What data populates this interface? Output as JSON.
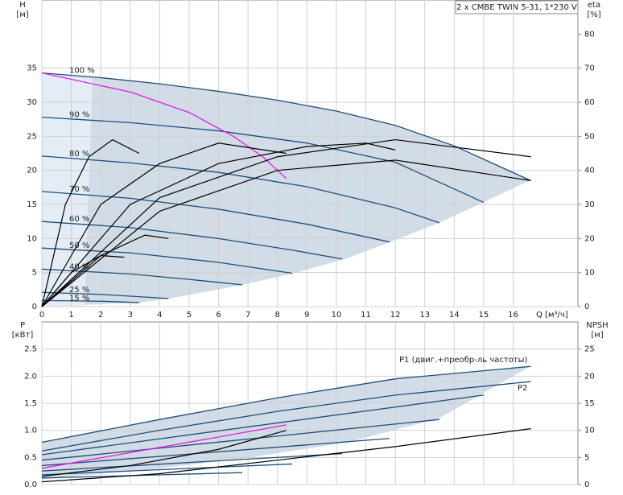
{
  "chart_data": [
    {
      "type": "line",
      "title": "2 x CMBE TWIN 5-31, 1*230 V",
      "xlabel": "Q [м³/ч]",
      "ylabel": "H",
      "yunit": "[м]",
      "y2label": "eta",
      "y2unit": "[%]",
      "xlim": [
        0,
        18.2
      ],
      "xticks": [
        0,
        1,
        2,
        3,
        4,
        5,
        6,
        7,
        8,
        9,
        10,
        11,
        12,
        13,
        14,
        15,
        16
      ],
      "ylim": [
        0,
        45
      ],
      "yticks": [
        0,
        5,
        10,
        15,
        20,
        25,
        30,
        35
      ],
      "y2lim": [
        0,
        90
      ],
      "y2ticks": [
        0,
        10,
        20,
        30,
        40,
        50,
        60,
        70,
        80
      ],
      "grid": true,
      "series": [
        {
          "name": "100 %",
          "color": "#1f4e79",
          "x": [
            0,
            2,
            4,
            6,
            8,
            10,
            12,
            14,
            16.6
          ],
          "y": [
            34.3,
            33.6,
            32.7,
            31.6,
            30.3,
            28.7,
            26.6,
            23.6,
            18.5
          ]
        },
        {
          "name": "90 %",
          "color": "#1f4e79",
          "x": [
            0,
            3,
            6,
            9,
            12,
            15
          ],
          "y": [
            27.8,
            27.0,
            25.8,
            24.0,
            21.2,
            15.3
          ]
        },
        {
          "name": "80 %",
          "color": "#1f4e79",
          "x": [
            0,
            3,
            6,
            9,
            12,
            13.5
          ],
          "y": [
            22.1,
            21.1,
            19.7,
            17.6,
            14.5,
            12.3
          ]
        },
        {
          "name": "70 %",
          "color": "#1f4e79",
          "x": [
            0,
            3,
            6,
            9,
            11.8
          ],
          "y": [
            16.9,
            15.9,
            14.3,
            12.1,
            9.5
          ]
        },
        {
          "name": "60 %",
          "color": "#1f4e79",
          "x": [
            0,
            3,
            6,
            8.5,
            10.2
          ],
          "y": [
            12.5,
            11.6,
            10.0,
            8.3,
            7.0
          ]
        },
        {
          "name": "50 %",
          "color": "#1f4e79",
          "x": [
            0,
            3,
            6,
            8.5
          ],
          "y": [
            8.6,
            7.9,
            6.5,
            4.9
          ]
        },
        {
          "name": "40 %",
          "color": "#1f4e79",
          "x": [
            0,
            3,
            5,
            6.8
          ],
          "y": [
            5.5,
            4.8,
            4.0,
            3.2
          ]
        },
        {
          "name": "25 %",
          "color": "#1f4e79",
          "x": [
            0,
            2,
            4.3
          ],
          "y": [
            2.1,
            1.8,
            1.2
          ]
        },
        {
          "name": "15 %",
          "color": "#1f4e79",
          "x": [
            0,
            2,
            3.3
          ],
          "y": [
            0.9,
            0.8,
            0.6
          ]
        },
        {
          "color": "#e020e0",
          "x": [
            0,
            3,
            5,
            6.5,
            7.5,
            8.3
          ],
          "y": [
            34.3,
            31.5,
            28.5,
            25.0,
            22.0,
            18.8
          ]
        },
        {
          "color": "#000000",
          "axis": "y2",
          "x": [
            0,
            0.8,
            1.6,
            2.4,
            3.3
          ],
          "y": [
            0,
            30,
            44,
            49,
            45
          ]
        },
        {
          "color": "#000000",
          "axis": "y2",
          "x": [
            0,
            2,
            4,
            6,
            8.3
          ],
          "y": [
            0,
            30,
            42,
            48,
            45
          ]
        },
        {
          "color": "#000000",
          "axis": "y2",
          "x": [
            0,
            3,
            6,
            9,
            11,
            12
          ],
          "y": [
            0,
            30,
            42,
            47,
            48,
            46
          ]
        },
        {
          "color": "#000000",
          "axis": "y2",
          "x": [
            0,
            4,
            8,
            12,
            16.6
          ],
          "y": [
            0,
            28,
            40,
            43,
            37
          ]
        },
        {
          "color": "#000000",
          "axis": "y2",
          "x": [
            0,
            4,
            8,
            12,
            16.6
          ],
          "y": [
            0,
            32,
            44,
            49,
            44
          ]
        },
        {
          "color": "#000000",
          "axis": "y2",
          "x": [
            0,
            1,
            2,
            2.8
          ],
          "y": [
            0,
            10,
            15,
            14.5
          ]
        },
        {
          "color": "#000000",
          "axis": "y2",
          "x": [
            0,
            2,
            3.5,
            4.3
          ],
          "y": [
            0,
            15,
            21,
            20
          ]
        }
      ]
    },
    {
      "type": "line",
      "ylabel": "P",
      "yunit": "[кВт]",
      "y2label": "NPSH",
      "y2unit": "[м]",
      "xlim": [
        0,
        18.2
      ],
      "ylim": [
        0,
        3
      ],
      "yticks": [
        {
          "value": 0,
          "label": "0.0"
        },
        0.5,
        {
          "value": 1,
          "label": "1.0"
        },
        1.5,
        {
          "value": 2,
          "label": "2.0"
        },
        2.5
      ],
      "y2lim": [
        0,
        30
      ],
      "y2ticks": [
        0,
        5,
        10,
        15,
        20,
        25
      ],
      "grid": true,
      "series": [
        {
          "name": "P1 (двиг.+преобр-ль частоты)",
          "color": "#1f4e79",
          "x": [
            0,
            4,
            8,
            12,
            16.6
          ],
          "y": [
            0.78,
            1.2,
            1.6,
            1.95,
            2.18
          ]
        },
        {
          "name": "P2",
          "color": "#1f4e79",
          "x": [
            0,
            4,
            8,
            12,
            16.6
          ],
          "y": [
            0.62,
            1.0,
            1.35,
            1.65,
            1.9
          ]
        },
        {
          "color": "#1f4e79",
          "x": [
            0,
            15
          ],
          "y": [
            0.55,
            1.65
          ]
        },
        {
          "color": "#1f4e79",
          "x": [
            0,
            13.5
          ],
          "y": [
            0.45,
            1.2
          ]
        },
        {
          "color": "#1f4e79",
          "x": [
            0,
            11.8
          ],
          "y": [
            0.35,
            0.85
          ]
        },
        {
          "color": "#1f4e79",
          "x": [
            0,
            10.2
          ],
          "y": [
            0.25,
            0.57
          ]
        },
        {
          "color": "#1f4e79",
          "x": [
            0,
            8.5
          ],
          "y": [
            0.18,
            0.38
          ]
        },
        {
          "color": "#1f4e79",
          "x": [
            0,
            6.8
          ],
          "y": [
            0.12,
            0.22
          ]
        },
        {
          "color": "#e020e0",
          "x": [
            0,
            8.3
          ],
          "y": [
            0.3,
            1.1
          ]
        },
        {
          "color": "#000000",
          "x": [
            0,
            3,
            6,
            8.3
          ],
          "y": [
            0.15,
            0.35,
            0.65,
            1.0
          ]
        },
        {
          "color": "#000000",
          "axis": "y2",
          "x": [
            0,
            4,
            8,
            12,
            16.6
          ],
          "y": [
            0.5,
            2,
            4.5,
            7,
            10.3
          ]
        }
      ]
    }
  ]
}
